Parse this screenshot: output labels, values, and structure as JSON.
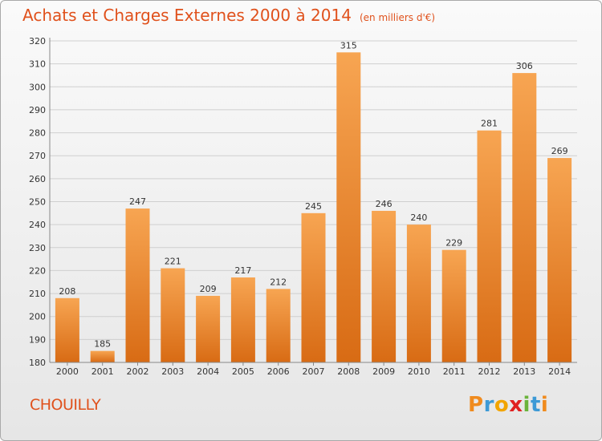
{
  "title": "Achats et Charges Externes 2000 à 2014",
  "unit": "(en milliers d'€)",
  "commune": "CHOUILLY",
  "logo": {
    "letters": [
      "P",
      "r",
      "o",
      "x",
      "i",
      "t",
      "i"
    ],
    "colors": [
      "#f08b1e",
      "#3d9ad6",
      "#f2a500",
      "#e02020",
      "#6bb33b",
      "#3d9ad6",
      "#f08b1e"
    ]
  },
  "colors": {
    "bar_light": "#f7a552",
    "bar_dark": "#d86b14",
    "text_accent": "#e0511c"
  },
  "chart_data": {
    "type": "bar",
    "categories": [
      "2000",
      "2001",
      "2002",
      "2003",
      "2004",
      "2005",
      "2006",
      "2007",
      "2008",
      "2009",
      "2010",
      "2011",
      "2012",
      "2013",
      "2014"
    ],
    "values": [
      208,
      185,
      247,
      221,
      209,
      217,
      212,
      245,
      315,
      246,
      240,
      229,
      281,
      306,
      269
    ],
    "title": "Achats et Charges Externes 2000 à 2014",
    "ylim": [
      180,
      320
    ],
    "yticks": [
      180,
      190,
      200,
      210,
      220,
      230,
      240,
      250,
      260,
      270,
      280,
      290,
      300,
      310,
      320
    ],
    "grid": true,
    "legend": "none"
  }
}
